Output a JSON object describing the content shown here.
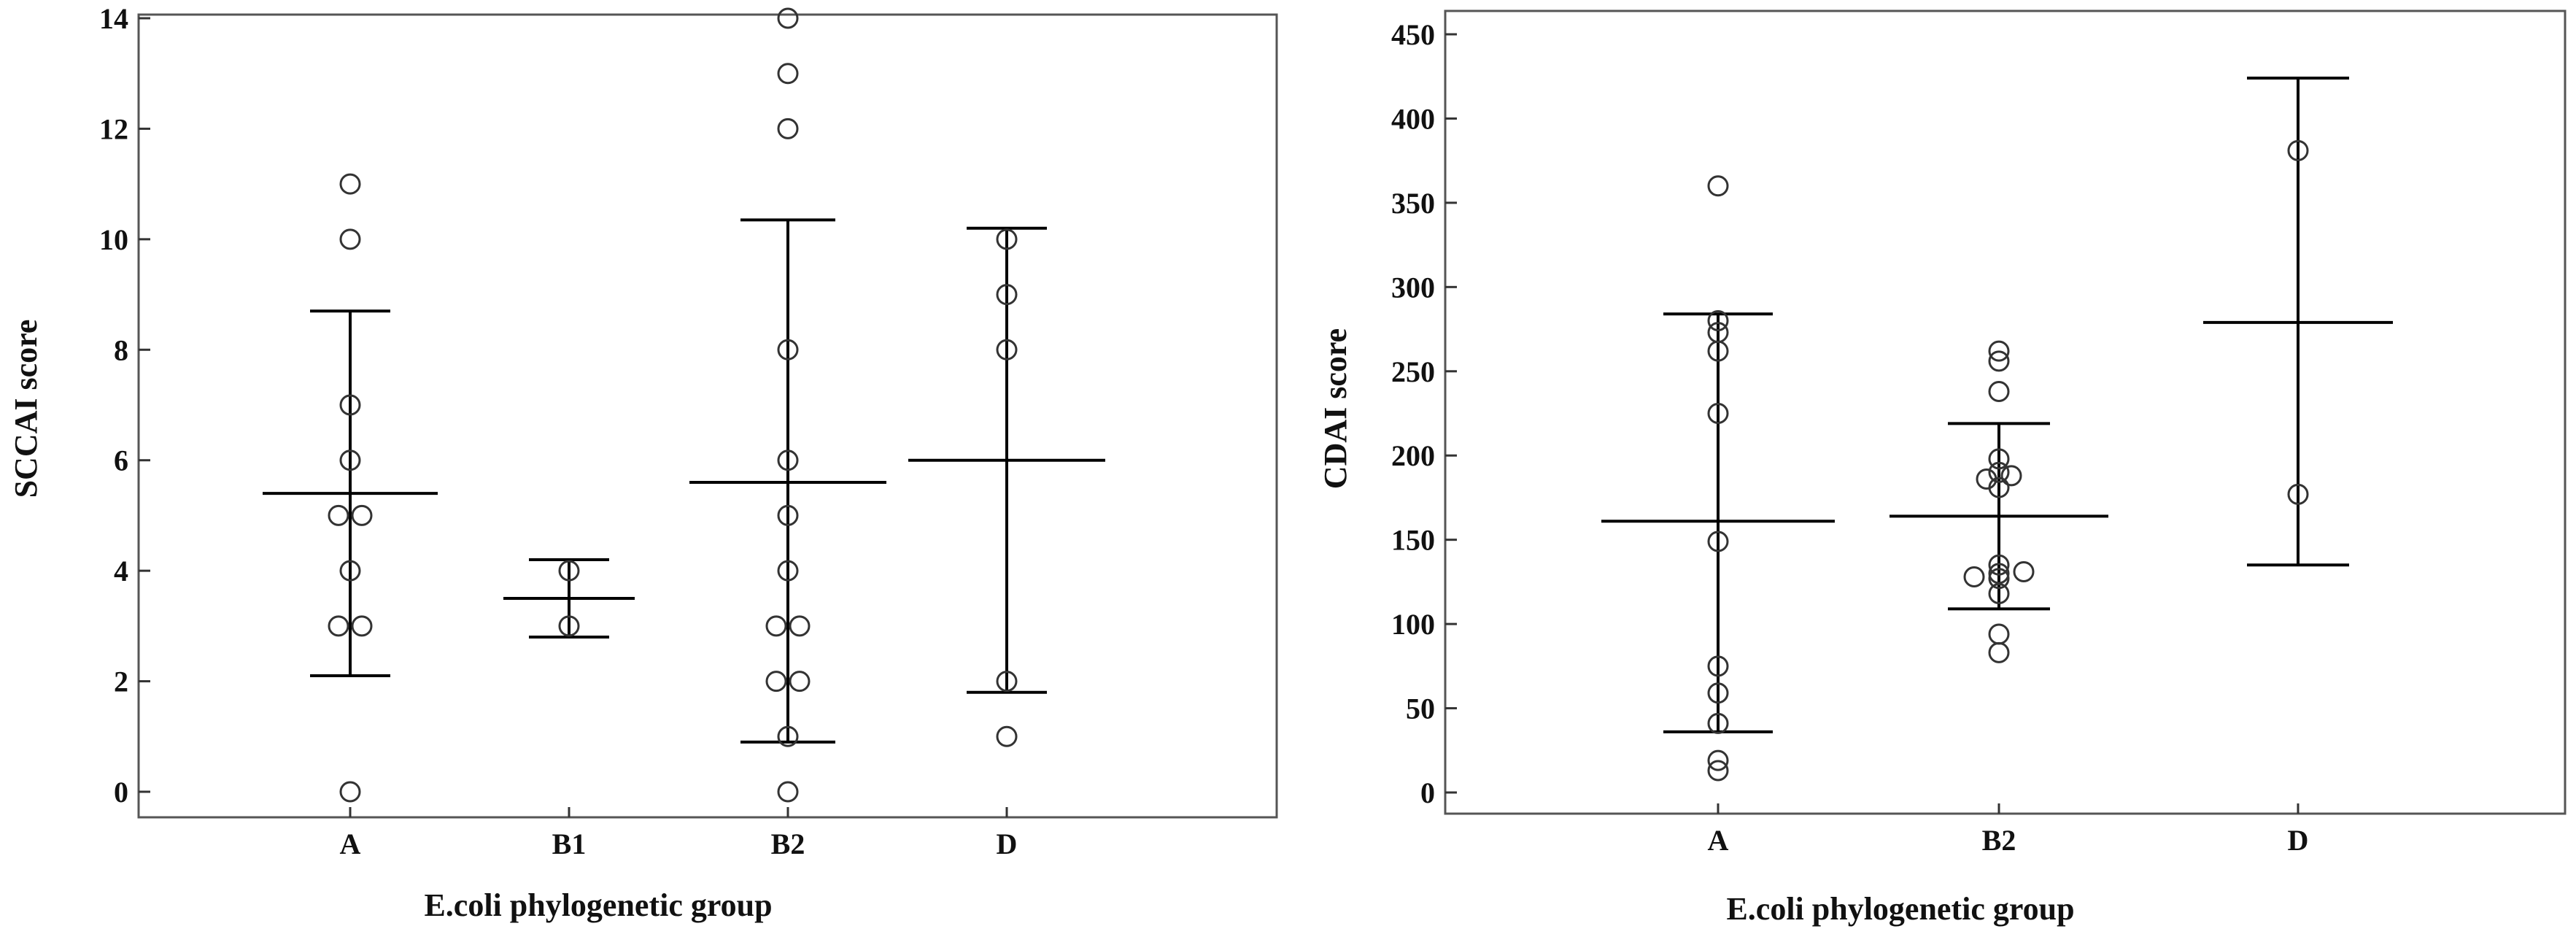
{
  "chart_data": [
    {
      "type": "scatter",
      "xlabel": "E.coli phylogenetic group",
      "ylabel": "SCCAI score",
      "categories": [
        "A",
        "B1",
        "B2",
        "D"
      ],
      "ylim": [
        -0.2,
        14.2
      ],
      "yticks": [
        0,
        2,
        4,
        6,
        8,
        10,
        12,
        14
      ],
      "grid": false,
      "groups": [
        {
          "category": "A",
          "points": [
            0,
            3,
            3,
            4,
            5,
            5,
            6,
            7,
            10,
            11
          ],
          "mean": 5.4,
          "lower": 2.1,
          "upper": 8.7
        },
        {
          "category": "B1",
          "points": [
            3,
            4
          ],
          "mean": 3.5,
          "lower": 2.8,
          "upper": 4.2
        },
        {
          "category": "B2",
          "points": [
            0,
            1,
            2,
            2,
            3,
            3,
            4,
            5,
            6,
            8,
            12,
            13,
            14
          ],
          "mean": 5.6,
          "lower": 0.9,
          "upper": 10.35
        },
        {
          "category": "D",
          "points": [
            1,
            2,
            8,
            9,
            10
          ],
          "mean": 6.0,
          "lower": 1.8,
          "upper": 10.2
        }
      ]
    },
    {
      "type": "scatter",
      "xlabel": "E.coli phylogenetic group",
      "ylabel": "CDAI  score",
      "categories": [
        "A",
        "B2",
        "D"
      ],
      "ylim": [
        -5,
        460
      ],
      "yticks": [
        0,
        50,
        100,
        150,
        200,
        250,
        300,
        350,
        400,
        450
      ],
      "grid": false,
      "groups": [
        {
          "category": "A",
          "points": [
            13,
            19,
            41,
            59,
            75,
            149,
            225,
            262,
            273,
            280,
            360
          ],
          "mean": 161,
          "lower": 36,
          "upper": 284
        },
        {
          "category": "B2",
          "points": [
            83,
            94,
            118,
            127,
            128,
            130,
            131,
            135,
            181,
            186,
            188,
            190,
            198,
            238,
            256,
            262
          ],
          "mean": 164,
          "lower": 109,
          "upper": 219
        },
        {
          "category": "D",
          "points": [
            177,
            381
          ],
          "mean": 279,
          "lower": 135,
          "upper": 424
        }
      ]
    }
  ]
}
